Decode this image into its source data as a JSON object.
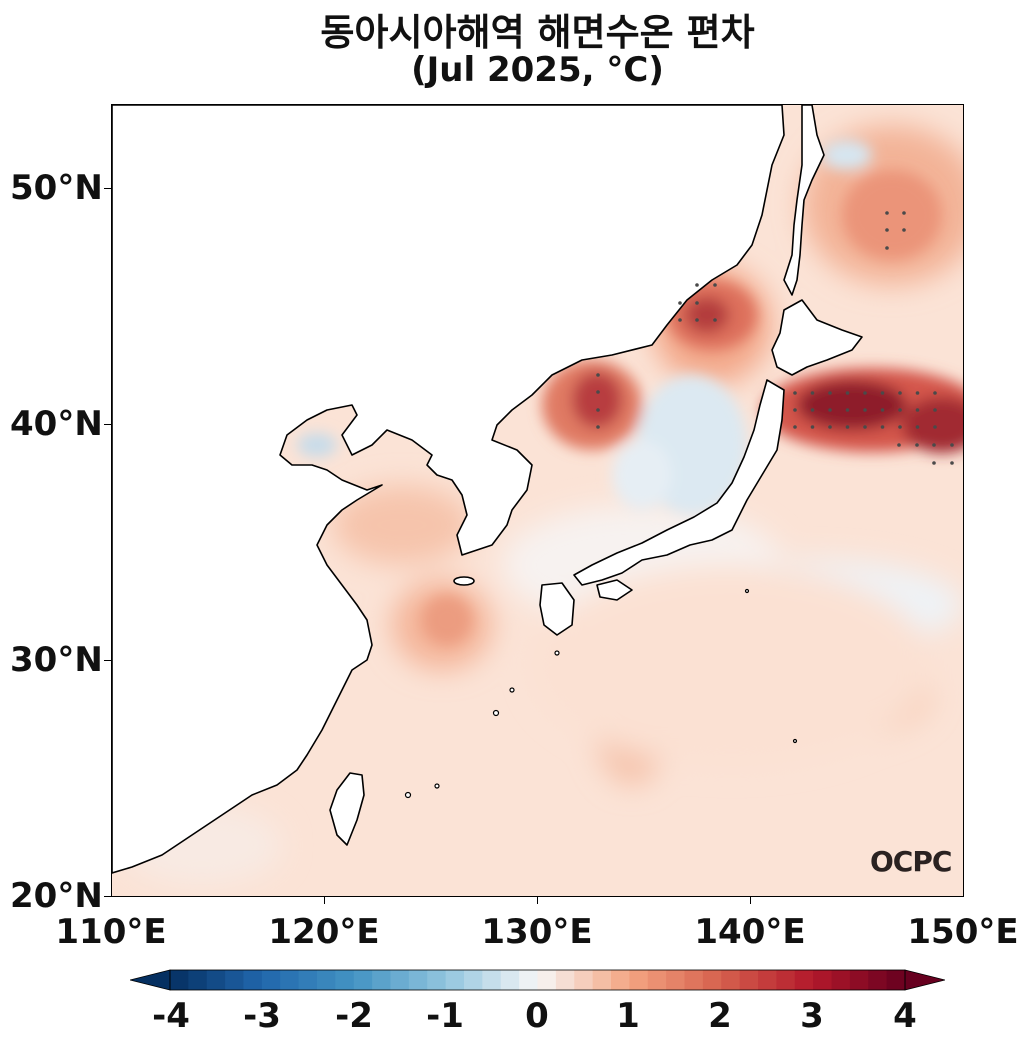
{
  "title": {
    "line1": "동아시아해역 해면수온 편차",
    "line2": "(Jul 2025, °C)"
  },
  "axes": {
    "y_ticks": [
      "50°N",
      "40°N",
      "30°N",
      "20°N"
    ],
    "x_ticks": [
      "110°E",
      "120°E",
      "130°E",
      "140°E",
      "150°E"
    ]
  },
  "colorbar": {
    "tick_labels": [
      "-4",
      "-3",
      "-2",
      "-1",
      "0",
      "1",
      "2",
      "3",
      "4"
    ],
    "min": -4,
    "max": 4,
    "colormap": "RdBu_r"
  },
  "logo": {
    "text": "OCPC"
  },
  "map_extent": {
    "lon": [
      110,
      150
    ],
    "lat": [
      20,
      53.5
    ]
  },
  "colors": {
    "land": "#ffffff",
    "coast": "#000000",
    "stipple": "#444444"
  }
}
